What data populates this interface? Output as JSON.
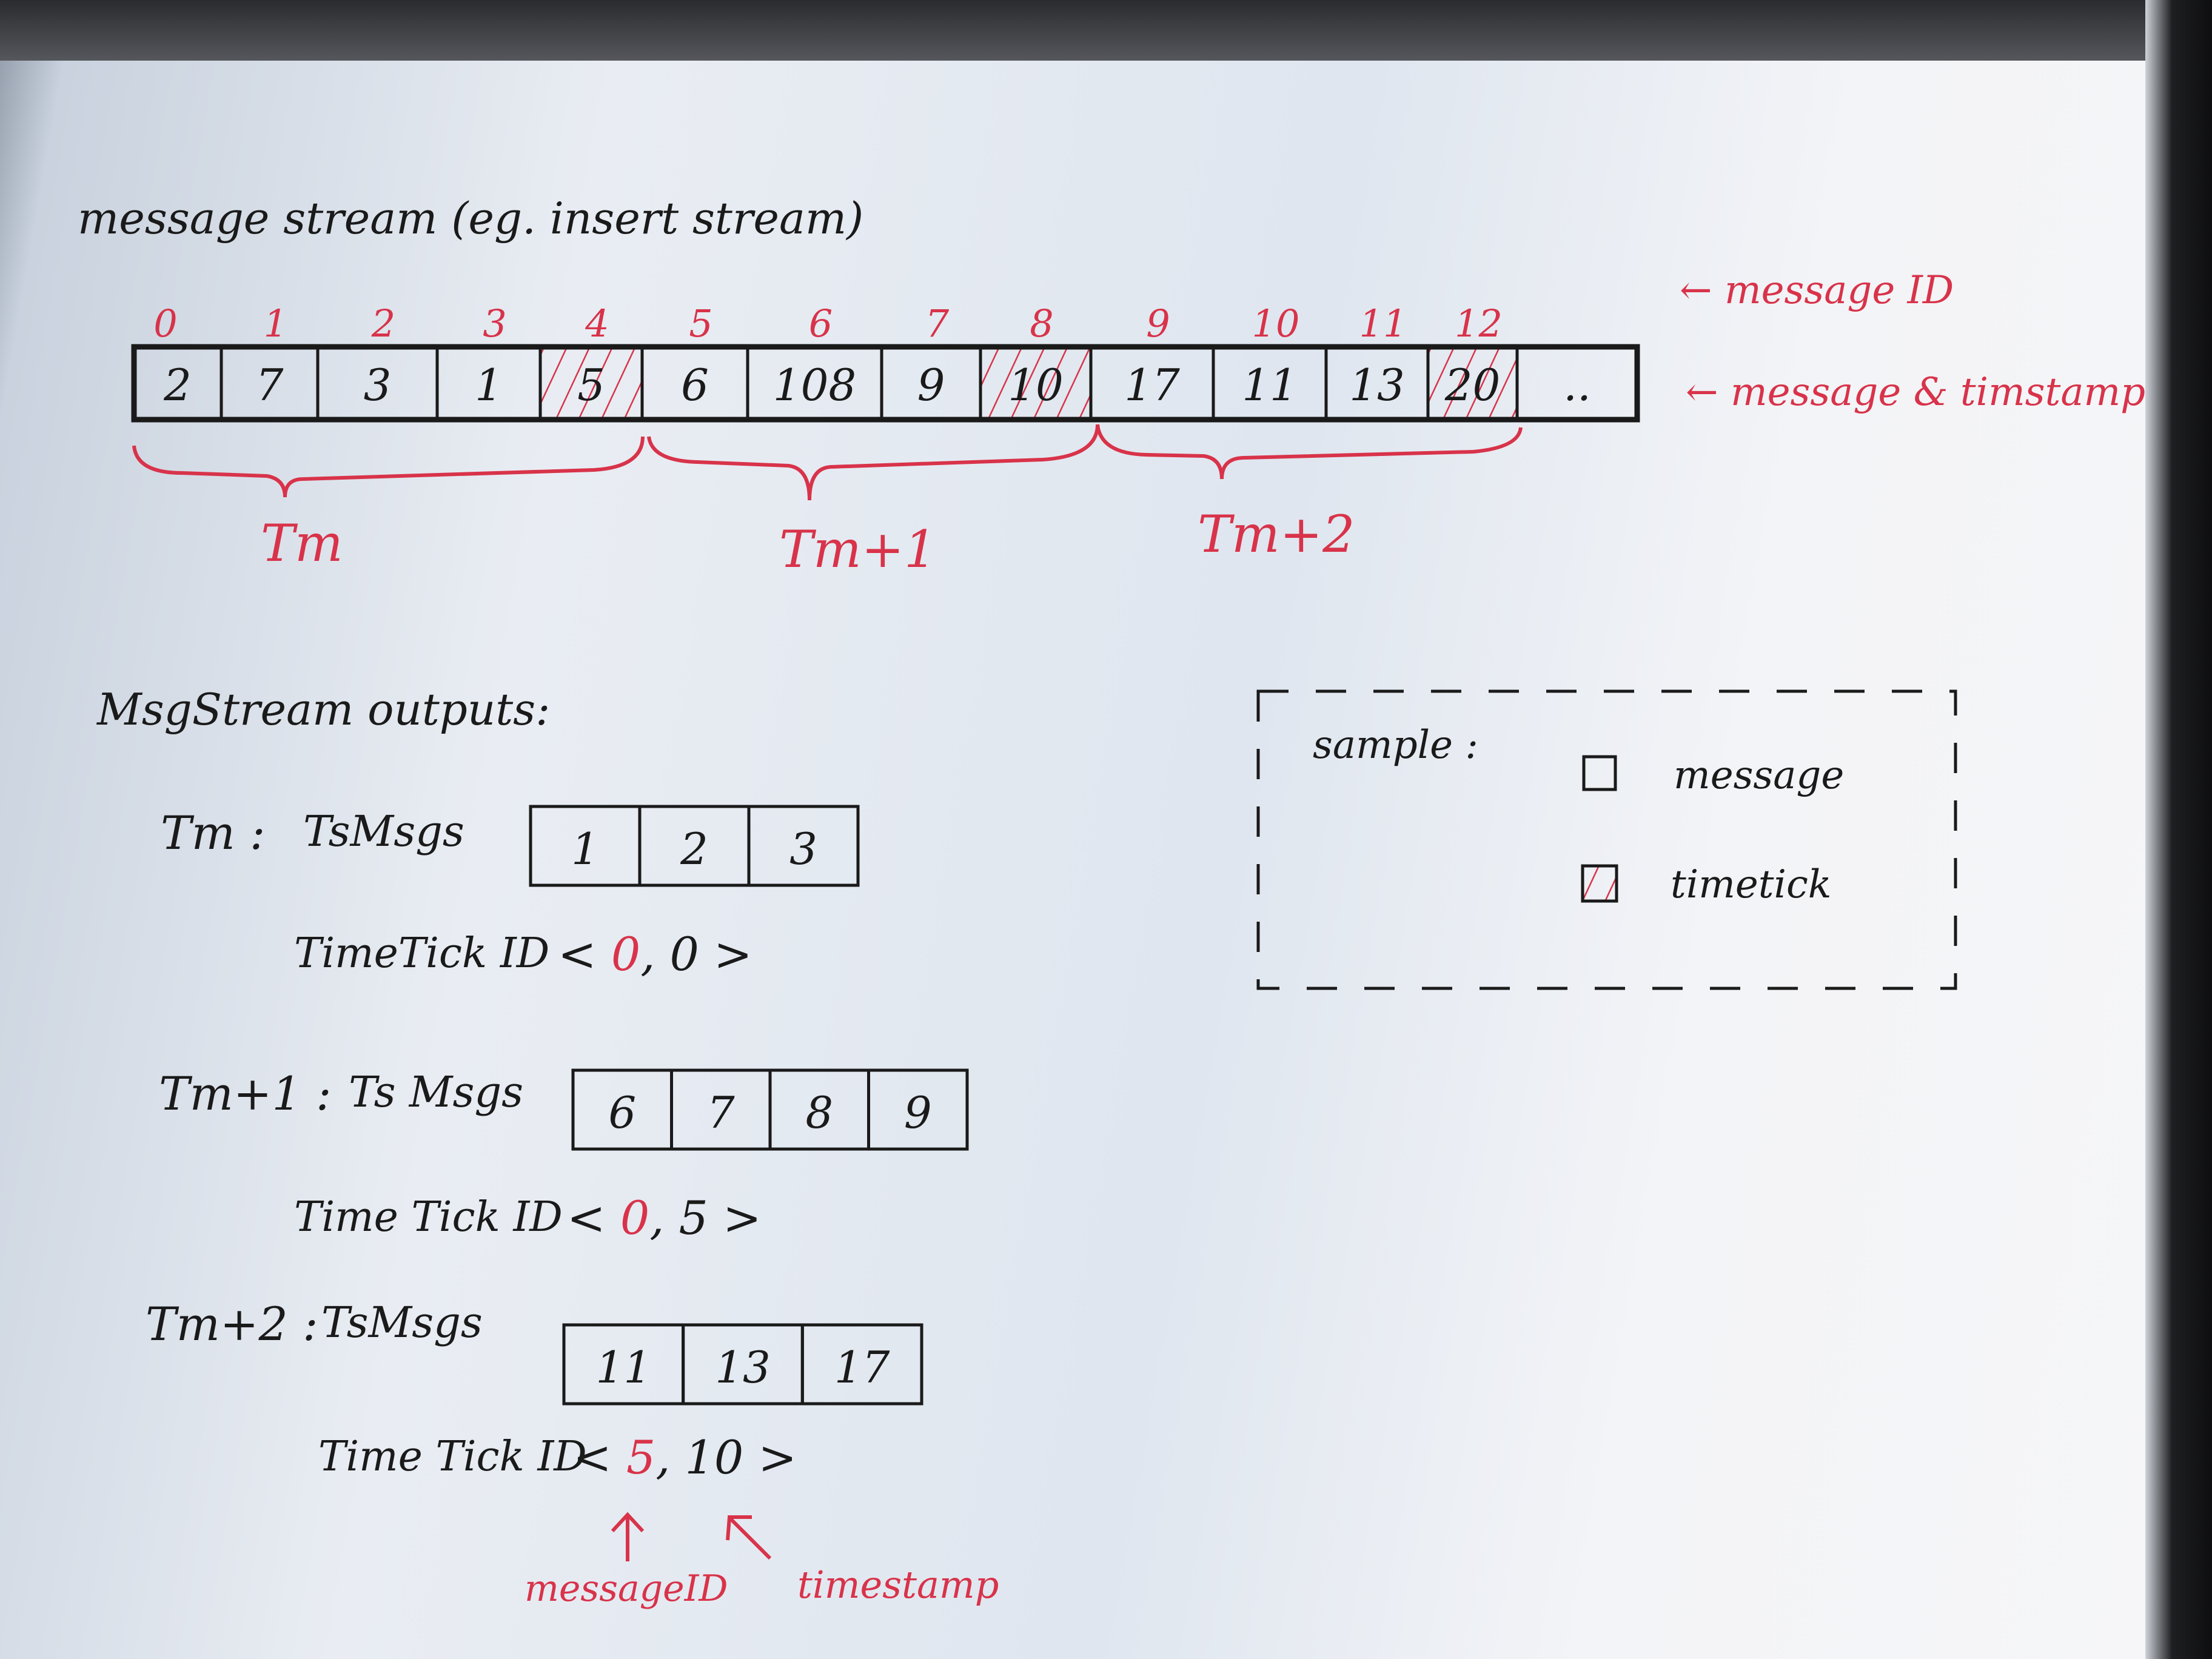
{
  "title": "message stream (eg. insert stream)",
  "stream": {
    "message_ids": [
      "0",
      "1",
      "2",
      "3",
      "4",
      "5",
      "6",
      "7",
      "8",
      "9",
      "10",
      "11",
      "12"
    ],
    "timestamps": [
      "2",
      "7",
      "3",
      "1",
      "5",
      "6",
      "108",
      "9",
      "10",
      "17",
      "11",
      "13",
      "20",
      ".."
    ],
    "timetick_indices": [
      4,
      8,
      12
    ],
    "id_annotation": "← message ID",
    "ts_annotation": "← message & timstamp"
  },
  "periods": [
    {
      "label": "Tm"
    },
    {
      "label": "Tm+1"
    },
    {
      "label": "Tm+2"
    }
  ],
  "outputs_title": "MsgStream outputs:",
  "outputs": [
    {
      "period": "Tm :",
      "msgs_label": "TsMsgs",
      "msgs": [
        "1",
        "2",
        "3"
      ],
      "tt_label": "TimeTick ID",
      "tt_msg_id": "0",
      "tt_ts": "0"
    },
    {
      "period": "Tm+1 :",
      "msgs_label": "Ts Msgs",
      "msgs": [
        "6",
        "7",
        "8",
        "9"
      ],
      "tt_label": "Time Tick ID",
      "tt_msg_id": "0",
      "tt_ts": "5"
    },
    {
      "period": "Tm+2 :",
      "msgs_label": "TsMsgs",
      "msgs": [
        "11",
        "13",
        "17"
      ],
      "tt_label": "Time Tick ID",
      "tt_msg_id": "5",
      "tt_ts": "10"
    }
  ],
  "pointer_labels": {
    "message_id": "messageID",
    "timestamp": "timestamp"
  },
  "legend": {
    "title": "sample :",
    "message": "message",
    "timetick": "timetick"
  },
  "colors": {
    "ink": "#1a1a1a",
    "red_pen": "#d8334a"
  }
}
